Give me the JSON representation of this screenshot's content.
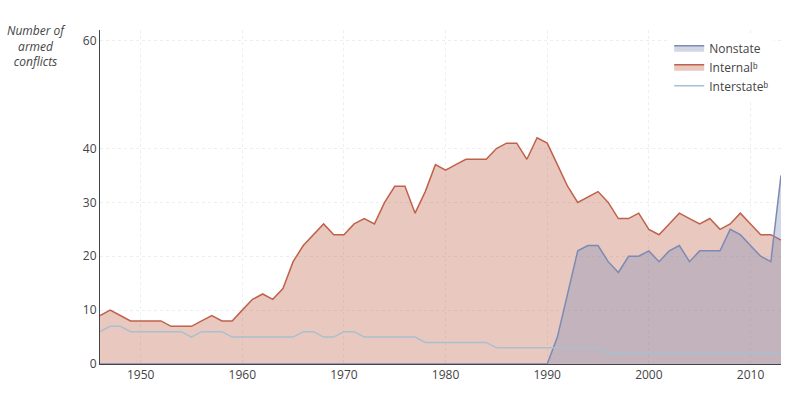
{
  "chart_data": {
    "type": "area",
    "x": [
      1946,
      1947,
      1948,
      1949,
      1950,
      1951,
      1952,
      1953,
      1954,
      1955,
      1956,
      1957,
      1958,
      1959,
      1960,
      1961,
      1962,
      1963,
      1964,
      1965,
      1966,
      1967,
      1968,
      1969,
      1970,
      1971,
      1972,
      1973,
      1974,
      1975,
      1976,
      1977,
      1978,
      1979,
      1980,
      1981,
      1982,
      1983,
      1984,
      1985,
      1986,
      1987,
      1988,
      1989,
      1990,
      1991,
      1992,
      1993,
      1994,
      1995,
      1996,
      1997,
      1998,
      1999,
      2000,
      2001,
      2002,
      2003,
      2004,
      2005,
      2006,
      2007,
      2008,
      2009,
      2010,
      2011,
      2012,
      2013
    ],
    "series": [
      {
        "name": "Nonstate",
        "color": "#7b8bb5",
        "type": "area",
        "values": [
          0,
          0,
          0,
          0,
          0,
          0,
          0,
          0,
          0,
          0,
          0,
          0,
          0,
          0,
          0,
          0,
          0,
          0,
          0,
          0,
          0,
          0,
          0,
          0,
          0,
          0,
          0,
          0,
          0,
          0,
          0,
          0,
          0,
          0,
          0,
          0,
          0,
          0,
          0,
          0,
          0,
          0,
          0,
          0,
          0,
          5,
          13,
          21,
          22,
          22,
          19,
          17,
          20,
          20,
          21,
          19,
          21,
          22,
          19,
          21,
          21,
          21,
          25,
          24,
          22,
          20,
          19,
          35
        ]
      },
      {
        "name": "Internalᵇ",
        "color": "#c0614a",
        "type": "area",
        "values": [
          9,
          10,
          9,
          8,
          8,
          8,
          8,
          7,
          7,
          7,
          8,
          9,
          8,
          8,
          10,
          12,
          13,
          12,
          14,
          19,
          22,
          24,
          26,
          24,
          24,
          26,
          27,
          26,
          30,
          33,
          33,
          28,
          32,
          37,
          36,
          37,
          38,
          38,
          38,
          40,
          41,
          41,
          38,
          42,
          41,
          37,
          33,
          30,
          31,
          32,
          30,
          27,
          27,
          28,
          25,
          24,
          26,
          28,
          27,
          26,
          27,
          25,
          26,
          28,
          26,
          24,
          24,
          23
        ]
      },
      {
        "name": "Interstateᵇ",
        "color": "#a8c0d0",
        "type": "line",
        "values": [
          6,
          7,
          7,
          6,
          6,
          6,
          6,
          6,
          6,
          5,
          6,
          6,
          6,
          5,
          5,
          5,
          5,
          5,
          5,
          5,
          6,
          6,
          5,
          5,
          6,
          6,
          5,
          5,
          5,
          5,
          5,
          5,
          4,
          4,
          4,
          4,
          4,
          4,
          4,
          3,
          3,
          3,
          3,
          3,
          3,
          3,
          3,
          3,
          3,
          3,
          2,
          2,
          2,
          2,
          2,
          2,
          2,
          2,
          2,
          2,
          2,
          2,
          2,
          2,
          2,
          2,
          2,
          2
        ]
      }
    ],
    "y_label": "Number of\narmed\nconflicts",
    "xlim": [
      1946,
      2013
    ],
    "xticks": [
      1950,
      1960,
      1970,
      1980,
      1990,
      2000,
      2010
    ],
    "ylim": [
      0,
      62
    ],
    "yticks": [
      0,
      10,
      20,
      30,
      40,
      60
    ],
    "grid": true,
    "legend": "upper right"
  }
}
